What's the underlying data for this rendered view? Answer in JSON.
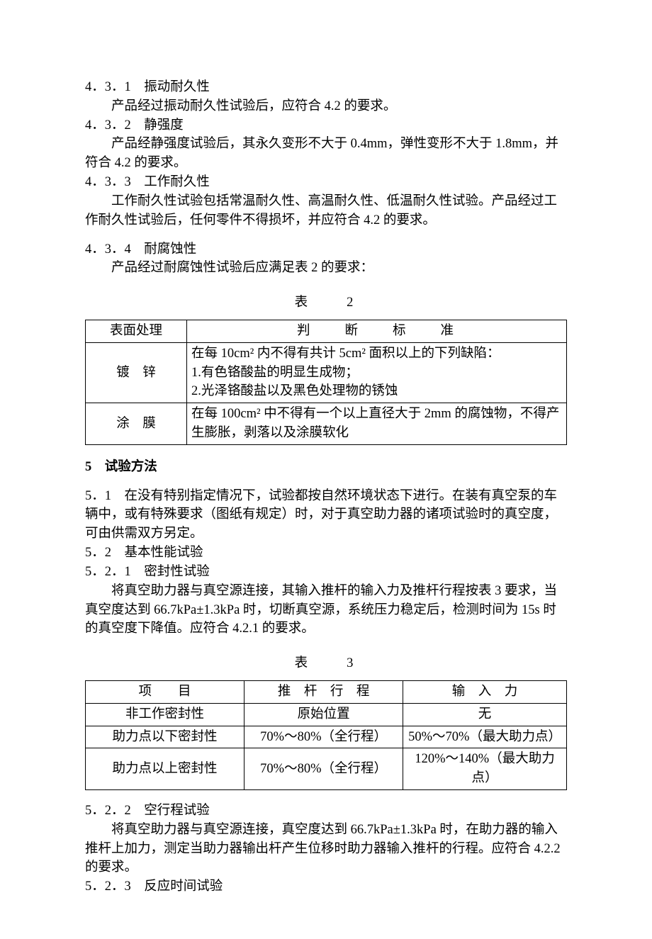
{
  "s431": {
    "num": "4．3．1　振动耐久性",
    "body": "产品经过振动耐久性试验后，应符合 4.2 的要求。"
  },
  "s432": {
    "num": "4．3．2　静强度",
    "body": "产品经静强度试验后，其永久变形不大于 0.4mm，弹性变形不大于 1.8mm，并符合 4.2 的要求。"
  },
  "s433": {
    "num": "4．3．3　工作耐久性",
    "body": "工作耐久性试验包括常温耐久性、高温耐久性、低温耐久性试验。产品经过工作耐久性试验后，任何零件不得损坏，并应符合 4.2 的要求。"
  },
  "s434": {
    "num": "4．3．4　耐腐蚀性",
    "body": "产品经过耐腐蚀性试验后应满足表 2 的要求："
  },
  "table2": {
    "caption": "表　　2",
    "header": {
      "c1": "表面处理",
      "c2": "判　　断　　标　　准"
    },
    "row1": {
      "c1": "镀　锌",
      "line1": "在每 10cm² 内不得有共计 5cm² 面积以上的下列缺陷：",
      "line2": "1.有色铬酸盐的明显生成物；",
      "line3": "2.光泽铬酸盐以及黑色处理物的锈蚀"
    },
    "row2": {
      "c1": "涂　膜",
      "c2": "在每 100cm² 中不得有一个以上直径大于 2mm 的腐蚀物，不得产生膨胀，剥落以及涂膜软化"
    }
  },
  "s5": {
    "title": "5　试验方法"
  },
  "s51": {
    "body": "5．1　在没有特别指定情况下，试验都按自然环境状态下进行。在装有真空泵的车辆中，或有特殊要求（图纸有规定）时，对于真空助力器的诸项试验时的真空度，可由供需双方另定。"
  },
  "s52": {
    "num": "5．2　基本性能试验"
  },
  "s521": {
    "num": "5．2．1　密封性试验",
    "body1": "将真空助力器与真空源连接，其输入推杆的输入力及推杆行程按表 3 要求，当真空度达到 66.7kPa±1.3kPa 时，切断真空源，系统压力稳定后，检测时间为 15s 时的真空度下降值。应符合 4.2.1 的要求。"
  },
  "table3": {
    "caption": "表　　3",
    "header": {
      "c1": "项　　目",
      "c2": "推　杆　行　程",
      "c3": "输　入　力"
    },
    "row1": {
      "c1": "非工作密封性",
      "c2": "原始位置",
      "c3": "无"
    },
    "row2": {
      "c1": "助力点以下密封性",
      "c2": "70%～80%（全行程）",
      "c3": "50%～70%（最大助力点）"
    },
    "row3": {
      "c1": "助力点以上密封性",
      "c2": "70%～80%（全行程）",
      "c3": "120%～140%（最大助力点）"
    }
  },
  "s522": {
    "num": "5．2．2　空行程试验",
    "body": "将真空助力器与真空源连接，真空度达到 66.7kPa±1.3kPa 时，在助力器的输入推杆上加力，测定当助力器输出杆产生位移时助力器输入推杆的行程。应符合 4.2.2 的要求。"
  },
  "s523": {
    "num": "5．2．3　反应时间试验"
  }
}
